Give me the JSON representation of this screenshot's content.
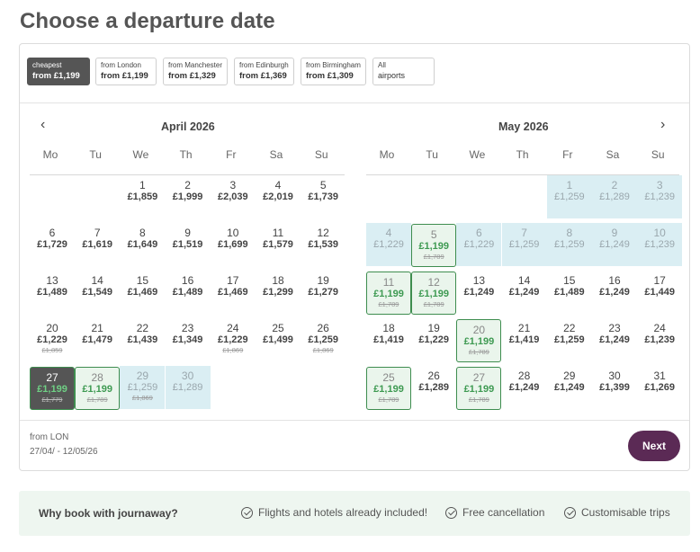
{
  "page": {
    "title": "Choose a departure date"
  },
  "airports": [
    {
      "line1": "cheapest",
      "line2": "from £1,199",
      "active": true
    },
    {
      "line1": "from London",
      "line2": "from £1,199"
    },
    {
      "line1": "from Manchester",
      "line2": "from £1,329"
    },
    {
      "line1": "from Edinburgh",
      "line2": "from £1,369"
    },
    {
      "line1": "from Birmingham",
      "line2": "from £1,309"
    },
    {
      "line1": "All",
      "line2": "airports"
    }
  ],
  "calendar": {
    "weekdays": [
      "Mo",
      "Tu",
      "We",
      "Th",
      "Fr",
      "Sa",
      "Su"
    ],
    "prev_icon": "chevron-left-icon",
    "next_icon": "chevron-right-icon",
    "months": [
      {
        "title": "April 2026",
        "days": [
          {
            "d": "1",
            "p": "£1,859",
            "col": 2,
            "row": 0
          },
          {
            "d": "2",
            "p": "£1,999",
            "col": 3,
            "row": 0
          },
          {
            "d": "3",
            "p": "£2,039",
            "col": 4,
            "row": 0
          },
          {
            "d": "4",
            "p": "£2,019",
            "col": 5,
            "row": 0
          },
          {
            "d": "5",
            "p": "£1,739",
            "col": 6,
            "row": 0
          },
          {
            "d": "6",
            "p": "£1,729",
            "col": 0,
            "row": 1
          },
          {
            "d": "7",
            "p": "£1,619",
            "col": 1,
            "row": 1
          },
          {
            "d": "8",
            "p": "£1,649",
            "col": 2,
            "row": 1
          },
          {
            "d": "9",
            "p": "£1,519",
            "col": 3,
            "row": 1
          },
          {
            "d": "10",
            "p": "£1,699",
            "col": 4,
            "row": 1
          },
          {
            "d": "11",
            "p": "£1,579",
            "col": 5,
            "row": 1
          },
          {
            "d": "12",
            "p": "£1,539",
            "col": 6,
            "row": 1
          },
          {
            "d": "13",
            "p": "£1,489",
            "col": 0,
            "row": 2
          },
          {
            "d": "14",
            "p": "£1,549",
            "col": 1,
            "row": 2
          },
          {
            "d": "15",
            "p": "£1,469",
            "col": 2,
            "row": 2
          },
          {
            "d": "16",
            "p": "£1,489",
            "col": 3,
            "row": 2
          },
          {
            "d": "17",
            "p": "£1,469",
            "col": 4,
            "row": 2
          },
          {
            "d": "18",
            "p": "£1,299",
            "col": 5,
            "row": 2
          },
          {
            "d": "19",
            "p": "£1,279",
            "col": 6,
            "row": 2
          },
          {
            "d": "20",
            "p": "£1,229",
            "o": "£1,859",
            "col": 0,
            "row": 3
          },
          {
            "d": "21",
            "p": "£1,479",
            "col": 1,
            "row": 3
          },
          {
            "d": "22",
            "p": "£1,439",
            "col": 2,
            "row": 3
          },
          {
            "d": "23",
            "p": "£1,349",
            "col": 3,
            "row": 3
          },
          {
            "d": "24",
            "p": "£1,229",
            "o": "£1,869",
            "col": 4,
            "row": 3
          },
          {
            "d": "25",
            "p": "£1,499",
            "col": 5,
            "row": 3
          },
          {
            "d": "26",
            "p": "£1,259",
            "o": "£1,869",
            "col": 6,
            "row": 3
          },
          {
            "d": "27",
            "p": "£1,199",
            "o": "£1,779",
            "col": 0,
            "row": 4,
            "state": "dark"
          },
          {
            "d": "28",
            "p": "£1,199",
            "o": "£1,789",
            "col": 1,
            "row": 4,
            "state": "range-sel"
          },
          {
            "d": "29",
            "p": "£1,259",
            "o": "£1,869",
            "col": 2,
            "row": 4,
            "state": "bg"
          },
          {
            "d": "30",
            "p": "£1,289",
            "col": 3,
            "row": 4,
            "state": "bg"
          }
        ]
      },
      {
        "title": "May 2026",
        "days": [
          {
            "d": "1",
            "p": "£1,259",
            "col": 4,
            "row": 0,
            "state": "bg"
          },
          {
            "d": "2",
            "p": "£1,289",
            "col": 5,
            "row": 0,
            "state": "bg"
          },
          {
            "d": "3",
            "p": "£1,239",
            "col": 6,
            "row": 0,
            "state": "bg"
          },
          {
            "d": "4",
            "p": "£1,229",
            "col": 0,
            "row": 1,
            "state": "bg"
          },
          {
            "d": "5",
            "p": "£1,199",
            "o": "£1,789",
            "col": 1,
            "row": 1,
            "state": "range-sel"
          },
          {
            "d": "6",
            "p": "£1,229",
            "col": 2,
            "row": 1,
            "state": "bg"
          },
          {
            "d": "7",
            "p": "£1,259",
            "col": 3,
            "row": 1,
            "state": "bg"
          },
          {
            "d": "8",
            "p": "£1,259",
            "col": 4,
            "row": 1,
            "state": "bg"
          },
          {
            "d": "9",
            "p": "£1,249",
            "col": 5,
            "row": 1,
            "state": "bg"
          },
          {
            "d": "10",
            "p": "£1,239",
            "col": 6,
            "row": 1,
            "state": "bg"
          },
          {
            "d": "11",
            "p": "£1,199",
            "o": "£1,789",
            "col": 0,
            "row": 2,
            "state": "range-sel"
          },
          {
            "d": "12",
            "p": "£1,199",
            "o": "£1,789",
            "col": 1,
            "row": 2,
            "state": "range-sel"
          },
          {
            "d": "13",
            "p": "£1,249",
            "col": 2,
            "row": 2
          },
          {
            "d": "14",
            "p": "£1,249",
            "col": 3,
            "row": 2
          },
          {
            "d": "15",
            "p": "£1,489",
            "col": 4,
            "row": 2
          },
          {
            "d": "16",
            "p": "£1,249",
            "col": 5,
            "row": 2
          },
          {
            "d": "17",
            "p": "£1,449",
            "col": 6,
            "row": 2
          },
          {
            "d": "18",
            "p": "£1,419",
            "col": 0,
            "row": 3
          },
          {
            "d": "19",
            "p": "£1,229",
            "col": 1,
            "row": 3
          },
          {
            "d": "20",
            "p": "£1,199",
            "o": "£1,789",
            "col": 2,
            "row": 3,
            "state": "sel"
          },
          {
            "d": "21",
            "p": "£1,419",
            "col": 3,
            "row": 3
          },
          {
            "d": "22",
            "p": "£1,259",
            "col": 4,
            "row": 3
          },
          {
            "d": "23",
            "p": "£1,249",
            "col": 5,
            "row": 3
          },
          {
            "d": "24",
            "p": "£1,239",
            "col": 6,
            "row": 3
          },
          {
            "d": "25",
            "p": "£1,199",
            "o": "£1,789",
            "col": 0,
            "row": 4,
            "state": "sel"
          },
          {
            "d": "26",
            "p": "£1,289",
            "col": 1,
            "row": 4
          },
          {
            "d": "27",
            "p": "£1,199",
            "o": "£1,789",
            "col": 2,
            "row": 4,
            "state": "sel"
          },
          {
            "d": "28",
            "p": "£1,249",
            "col": 3,
            "row": 4
          },
          {
            "d": "29",
            "p": "£1,249",
            "col": 4,
            "row": 4
          },
          {
            "d": "30",
            "p": "£1,399",
            "col": 5,
            "row": 4
          },
          {
            "d": "31",
            "p": "£1,269",
            "col": 6,
            "row": 4
          }
        ]
      }
    ]
  },
  "footer": {
    "from_label": "from LON",
    "range_label": "27/04/ - 12/05/26",
    "next_label": "Next"
  },
  "why": {
    "title": "Why book with journaway?",
    "features": [
      "Flights and hotels already included!",
      "Free cancellation",
      "Customisable trips"
    ]
  },
  "colors": {
    "accent": "#5b2a55",
    "selected_green": "#3e9a52",
    "range_blue": "#daeef3",
    "dark_cell": "#555555"
  }
}
